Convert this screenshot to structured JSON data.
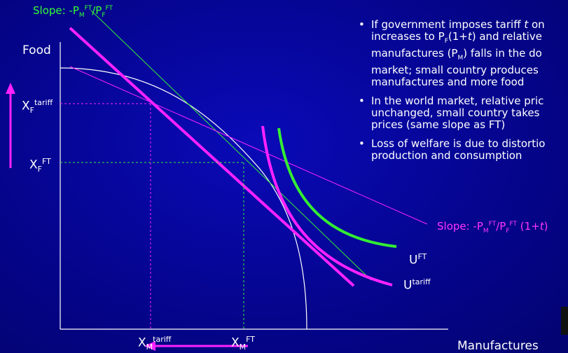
{
  "slope_ft": {
    "prefix": "Slope: -P",
    "a": "M",
    "b": "FT",
    "mid": "/P",
    "c": "F",
    "d": "FT"
  },
  "slope_tariff": {
    "prefix": "Slope: -P",
    "a": "M",
    "b": "FT",
    "mid": "/P",
    "c": "F",
    "d": "FT",
    "suffix": " (1+",
    "t": "t",
    "close": ")"
  },
  "axes": {
    "y_label": "Food",
    "x_label": "Manufactures"
  },
  "labels": {
    "xf_tariff": {
      "main": "X",
      "sub": "F",
      "sup": "tariff"
    },
    "xf_ft": {
      "main": "X",
      "sub": "F",
      "sup": "FT"
    },
    "xm_tariff": {
      "main": "X",
      "sub": "M",
      "sup": "tariff"
    },
    "xm_ft": {
      "main": "X",
      "sub": "M",
      "sup": "FT"
    },
    "u_ft": {
      "main": "U",
      "sup": "FT"
    },
    "u_tariff": {
      "main": "U",
      "sup": "tariff"
    }
  },
  "bullets": [
    {
      "dot": "•",
      "lines": [
        {
          "t1": "If government imposes tariff ",
          "it": "t",
          "t2": " on"
        },
        {
          "t1": "increases to P",
          "sub": "F",
          "t2": "(1+",
          "it": "t",
          "t3": ") and relative"
        },
        {
          "t1": "manufactures (P",
          "sub": "M",
          "t2": ") falls in the do"
        },
        {
          "t1": "market; small country produces"
        },
        {
          "t1": "manufactures and more food"
        }
      ]
    },
    {
      "dot": "•",
      "lines": [
        {
          "t1": "In the world market, relative pric"
        },
        {
          "t1": "unchanged, small country takes"
        },
        {
          "t1": "prices (same slope as FT)"
        }
      ]
    },
    {
      "dot": "•",
      "lines": [
        {
          "t1": "Loss of welfare is due to distortio"
        },
        {
          "t1": "production and consumption"
        }
      ]
    }
  ],
  "colors": {
    "ft": "#33ee33",
    "tariff": "#ff22ff",
    "white": "#ffffff"
  }
}
